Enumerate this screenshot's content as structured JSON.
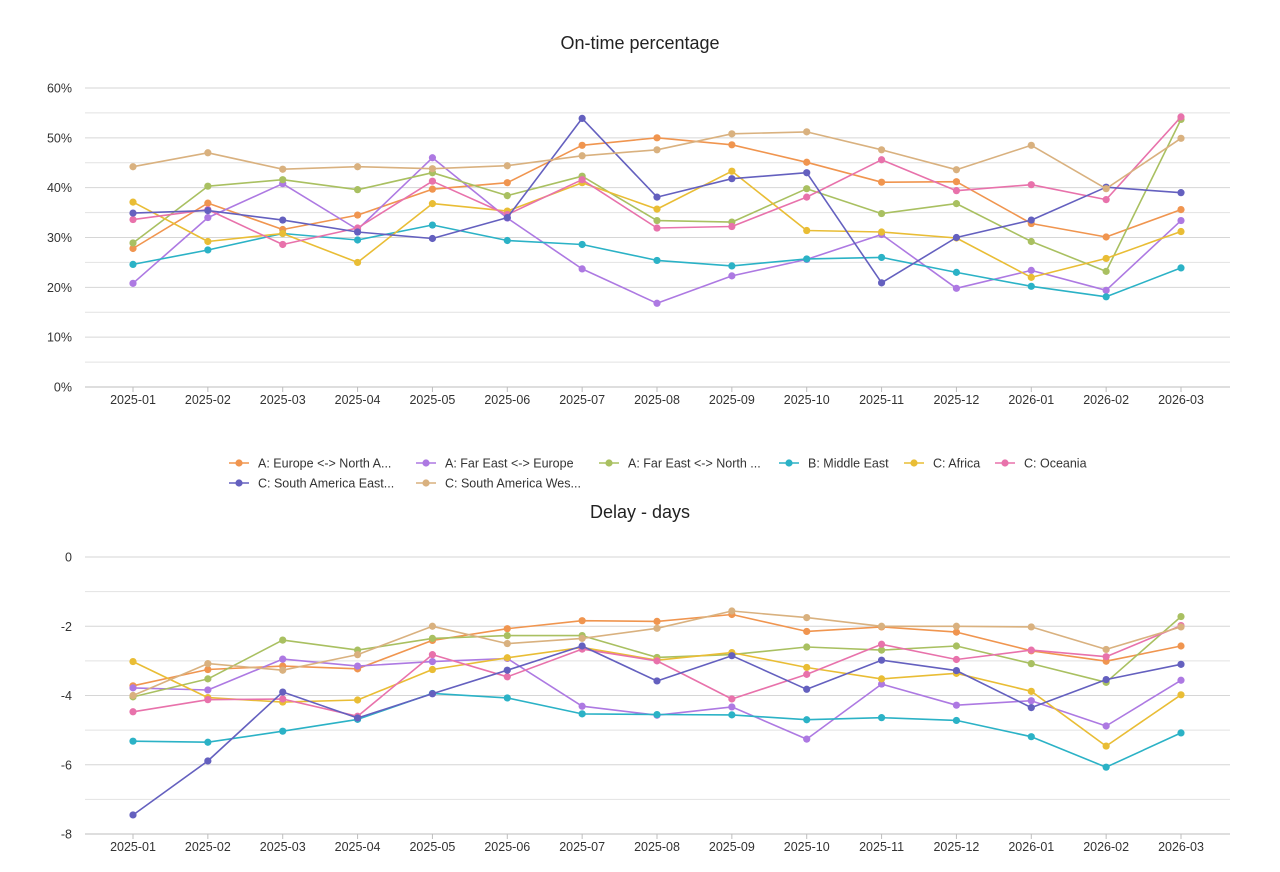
{
  "chart_data": [
    {
      "type": "line",
      "title": "On-time percentage",
      "xlabel": "",
      "ylabel": "",
      "ylim": [
        0,
        60
      ],
      "y_ticks": [
        "0%",
        "10%",
        "20%",
        "30%",
        "40%",
        "50%",
        "60%"
      ],
      "y_tick_values": [
        0,
        10,
        20,
        30,
        40,
        50,
        60
      ],
      "grid": true,
      "categories": [
        "2025-01",
        "2025-02",
        "2025-03",
        "2025-04",
        "2025-05",
        "2025-06",
        "2025-07",
        "2025-08",
        "2025-09",
        "2025-10",
        "2025-11",
        "2025-12",
        "2026-01",
        "2026-02",
        "2026-03"
      ],
      "series": [
        {
          "name": "A: Europe <-> North A...",
          "color": "#f0954f",
          "values": [
            27.8,
            36.9,
            31.6,
            34.5,
            39.7,
            41.0,
            48.5,
            50.0,
            48.6,
            45.1,
            41.1,
            41.2,
            32.8,
            30.1,
            35.6
          ]
        },
        {
          "name": "A: Far East <-> Europe",
          "color": "#ad79e2",
          "values": [
            20.8,
            34.0,
            40.8,
            31.6,
            46.0,
            33.9,
            23.7,
            16.8,
            22.3,
            25.6,
            30.6,
            19.8,
            23.4,
            19.4,
            33.4
          ]
        },
        {
          "name": "A: Far East <-> North ...",
          "color": "#a9c061",
          "values": [
            28.9,
            40.3,
            41.6,
            39.6,
            43.0,
            38.4,
            42.3,
            33.4,
            33.1,
            39.8,
            34.8,
            36.8,
            29.2,
            23.2,
            53.7
          ]
        },
        {
          "name": "B: Middle East",
          "color": "#2bb2c6",
          "values": [
            24.6,
            27.5,
            30.8,
            29.5,
            32.5,
            29.4,
            28.6,
            25.4,
            24.3,
            25.7,
            26.0,
            23.0,
            20.2,
            18.1,
            23.9
          ]
        },
        {
          "name": "C: Africa",
          "color": "#e9bd35",
          "values": [
            37.1,
            29.2,
            30.8,
            25.0,
            36.8,
            35.3,
            41.0,
            35.7,
            43.3,
            31.4,
            31.1,
            29.9,
            22.0,
            25.8,
            31.2
          ]
        },
        {
          "name": "C: Oceania",
          "color": "#e872ab",
          "values": [
            33.6,
            35.6,
            28.6,
            31.9,
            41.3,
            34.6,
            41.6,
            31.9,
            32.2,
            38.1,
            45.6,
            39.4,
            40.6,
            37.6,
            54.2
          ]
        },
        {
          "name": "C: South America East...",
          "color": "#6460bf",
          "values": [
            34.9,
            35.4,
            33.5,
            31.1,
            29.8,
            34.0,
            53.9,
            38.1,
            41.8,
            43.0,
            20.9,
            30.0,
            33.5,
            40.1,
            39.0
          ]
        },
        {
          "name": "C: South America Wes...",
          "color": "#d9b17f",
          "values": [
            44.2,
            47.0,
            43.7,
            44.2,
            43.8,
            44.4,
            46.4,
            47.6,
            50.8,
            51.2,
            47.6,
            43.6,
            48.5,
            39.8,
            49.9
          ]
        }
      ]
    },
    {
      "type": "line",
      "title": "Delay - days",
      "xlabel": "",
      "ylabel": "",
      "ylim": [
        -8,
        0
      ],
      "y_ticks": [
        "0",
        "-2",
        "-4",
        "-6",
        "-8"
      ],
      "y_tick_values": [
        0,
        -2,
        -4,
        -6,
        -8
      ],
      "grid": true,
      "categories": [
        "2025-01",
        "2025-02",
        "2025-03",
        "2025-04",
        "2025-05",
        "2025-06",
        "2025-07",
        "2025-08",
        "2025-09",
        "2025-10",
        "2025-11",
        "2025-12",
        "2026-01",
        "2026-02",
        "2026-03"
      ],
      "series": [
        {
          "name": "A: Europe <-> North A...",
          "color": "#f0954f",
          "values": [
            -3.72,
            -3.25,
            -3.15,
            -3.23,
            -2.41,
            -2.07,
            -1.84,
            -1.86,
            -1.66,
            -2.15,
            -2.02,
            -2.17,
            -2.71,
            -3.01,
            -2.57
          ]
        },
        {
          "name": "A: Far East <-> Europe",
          "color": "#ad79e2",
          "values": [
            -3.78,
            -3.84,
            -2.95,
            -3.15,
            -3.02,
            -2.93,
            -4.31,
            -4.57,
            -4.33,
            -5.26,
            -3.67,
            -4.28,
            -4.15,
            -4.88,
            -3.56
          ]
        },
        {
          "name": "A: Far East <-> North ...",
          "color": "#a9c061",
          "values": [
            -4.04,
            -3.52,
            -2.4,
            -2.69,
            -2.35,
            -2.27,
            -2.27,
            -2.9,
            -2.82,
            -2.6,
            -2.69,
            -2.57,
            -3.08,
            -3.62,
            -1.72
          ]
        },
        {
          "name": "B: Middle East",
          "color": "#2bb2c6",
          "values": [
            -5.32,
            -5.35,
            -5.03,
            -4.69,
            -3.94,
            -4.07,
            -4.53,
            -4.55,
            -4.56,
            -4.7,
            -4.64,
            -4.72,
            -5.19,
            -6.07,
            -5.08
          ]
        },
        {
          "name": "C: Africa",
          "color": "#e9bd35",
          "values": [
            -3.02,
            -4.06,
            -4.19,
            -4.13,
            -3.25,
            -2.91,
            -2.61,
            -2.98,
            -2.76,
            -3.19,
            -3.52,
            -3.36,
            -3.88,
            -5.46,
            -3.98
          ]
        },
        {
          "name": "C: Oceania",
          "color": "#e872ab",
          "values": [
            -4.47,
            -4.12,
            -4.1,
            -4.6,
            -2.82,
            -3.46,
            -2.66,
            -3.0,
            -4.1,
            -3.39,
            -2.52,
            -2.96,
            -2.69,
            -2.88,
            -1.98
          ]
        },
        {
          "name": "C: South America East...",
          "color": "#6460bf",
          "values": [
            -7.45,
            -5.89,
            -3.9,
            -4.65,
            -3.95,
            -3.27,
            -2.57,
            -3.58,
            -2.85,
            -3.82,
            -2.98,
            -3.28,
            -4.35,
            -3.54,
            -3.1
          ]
        },
        {
          "name": "C: South America Wes...",
          "color": "#d9b17f",
          "values": [
            -4.0,
            -3.08,
            -3.27,
            -2.82,
            -2.0,
            -2.5,
            -2.35,
            -2.06,
            -1.56,
            -1.75,
            -2.0,
            -2.0,
            -2.02,
            -2.67,
            -2.02
          ]
        }
      ]
    }
  ]
}
